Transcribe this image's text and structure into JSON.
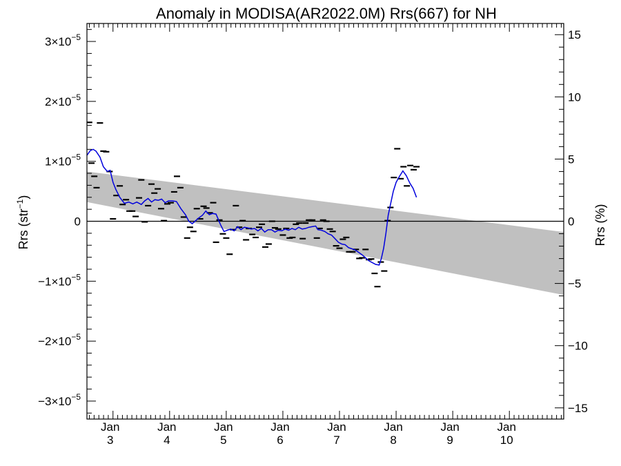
{
  "chart_data": {
    "type": "scatter",
    "title": "Anomaly in MODISA(AR2022.0M) Rrs(667) for NH",
    "ylabel_left_prefix": "Rrs (str",
    "ylabel_left_sup": "−1",
    "ylabel_left_suffix": ")",
    "ylabel_right": "Rrs (%)",
    "x_tick_labels": [
      {
        "top": "Jan",
        "bottom": "3",
        "x": 2003.0
      },
      {
        "top": "Jan",
        "bottom": "4",
        "x": 2004.0
      },
      {
        "top": "Jan",
        "bottom": "5",
        "x": 2005.0
      },
      {
        "top": "Jan",
        "bottom": "6",
        "x": 2006.0
      },
      {
        "top": "Jan",
        "bottom": "7",
        "x": 2007.0
      },
      {
        "top": "Jan",
        "bottom": "8",
        "x": 2008.0
      },
      {
        "top": "Jan",
        "bottom": "9",
        "x": 2009.0
      },
      {
        "top": "Jan",
        "bottom": "10",
        "x": 2010.0
      }
    ],
    "xlim": [
      2002.54,
      2010.96
    ],
    "ylim_left": [
      -3.3e-05,
      3.3e-05
    ],
    "ylim_right": [
      -15.9,
      15.9
    ],
    "left_ticks": [
      {
        "value": -3e-05,
        "mant": "−3×10",
        "exp": "−5"
      },
      {
        "value": -2e-05,
        "mant": "−2×10",
        "exp": "−5"
      },
      {
        "value": -1e-05,
        "mant": "−1×10",
        "exp": "−5"
      },
      {
        "value": 0,
        "mant": "0",
        "exp": ""
      },
      {
        "value": 1e-05,
        "mant": "1×10",
        "exp": "−5"
      },
      {
        "value": 2e-05,
        "mant": "2×10",
        "exp": "−5"
      },
      {
        "value": 3e-05,
        "mant": "3×10",
        "exp": "−5"
      }
    ],
    "right_ticks": [
      {
        "value": -15,
        "label": "−15"
      },
      {
        "value": -10,
        "label": "−10"
      },
      {
        "value": -5,
        "label": "−5"
      },
      {
        "value": 0,
        "label": "0"
      },
      {
        "value": 5,
        "label": "5"
      },
      {
        "value": 10,
        "label": "10"
      },
      {
        "value": 15,
        "label": "15"
      }
    ],
    "band": {
      "x": [
        2002.54,
        2010.96
      ],
      "upper": [
        8.3e-06,
        -1.8e-06
      ],
      "lower": [
        3.2e-06,
        -1.23e-05
      ],
      "color": "#c0c0c0"
    },
    "zero_line": true,
    "grid": false,
    "legend": "none",
    "colors": {
      "line": "#0000dd",
      "points": "#000000",
      "band": "#c0c0c0"
    },
    "points": [
      [
        2002.58,
        1.65e-05
      ],
      [
        2002.62,
        9.7e-06
      ],
      [
        2002.67,
        7.5e-06
      ],
      [
        2002.71,
        5.6e-06
      ],
      [
        2002.77,
        1.64e-05
      ],
      [
        2002.83,
        1.17e-05
      ],
      [
        2002.88,
        1.16e-05
      ],
      [
        2002.94,
        8.3e-06
      ],
      [
        2003.0,
        4e-07
      ],
      [
        2003.06,
        4.3e-06
      ],
      [
        2003.12,
        5.9e-06
      ],
      [
        2003.17,
        2.8e-06
      ],
      [
        2003.23,
        3.6e-06
      ],
      [
        2003.29,
        1.7e-06
      ],
      [
        2003.34,
        1.7e-06
      ],
      [
        2003.4,
        8e-07
      ],
      [
        2003.46,
        3.9e-06
      ],
      [
        2003.5,
        6.9e-06
      ],
      [
        2003.56,
        -1e-07
      ],
      [
        2003.62,
        2.6e-06
      ],
      [
        2003.68,
        6.2e-06
      ],
      [
        2003.73,
        4.7e-06
      ],
      [
        2003.79,
        5.4e-06
      ],
      [
        2003.85,
        2.1e-06
      ],
      [
        2003.9,
        1e-07
      ],
      [
        2003.96,
        2.9e-06
      ],
      [
        2004.02,
        3.1e-06
      ],
      [
        2004.08,
        4.9e-06
      ],
      [
        2004.13,
        7.5e-06
      ],
      [
        2004.19,
        5.6e-06
      ],
      [
        2004.25,
        7e-07
      ],
      [
        2004.31,
        -2.8e-06
      ],
      [
        2004.36,
        -1e-06
      ],
      [
        2004.42,
        -1.7e-06
      ],
      [
        2004.48,
        2.1e-06
      ],
      [
        2004.54,
        4e-07
      ],
      [
        2004.6,
        2.5e-06
      ],
      [
        2004.65,
        2.2e-06
      ],
      [
        2004.71,
        1.4e-06
      ],
      [
        2004.77,
        3.1e-06
      ],
      [
        2004.82,
        -3.5e-06
      ],
      [
        2004.88,
        2e-07
      ],
      [
        2004.94,
        -2.1e-06
      ],
      [
        2005.0,
        -2.8e-06
      ],
      [
        2005.06,
        -5.5e-06
      ],
      [
        2005.12,
        -1.4e-06
      ],
      [
        2005.17,
        2.6e-06
      ],
      [
        2005.23,
        -1e-06
      ],
      [
        2005.29,
        1e-07
      ],
      [
        2005.35,
        -3.1e-06
      ],
      [
        2005.4,
        -1.2e-06
      ],
      [
        2005.46,
        -2.2e-06
      ],
      [
        2005.52,
        -2.7e-06
      ],
      [
        2005.58,
        -1e-06
      ],
      [
        2005.63,
        -5e-07
      ],
      [
        2005.69,
        -4.3e-06
      ],
      [
        2005.75,
        -3.8e-06
      ],
      [
        2005.81,
        0
      ],
      [
        2005.86,
        -1.1e-06
      ],
      [
        2005.92,
        -1.3e-06
      ],
      [
        2006.0,
        -2.3e-06
      ],
      [
        2006.06,
        -1.2e-06
      ],
      [
        2006.12,
        -2.8e-06
      ],
      [
        2006.17,
        -2.7e-06
      ],
      [
        2006.23,
        -5e-07
      ],
      [
        2006.29,
        -3e-07
      ],
      [
        2006.35,
        -2.9e-06
      ],
      [
        2006.4,
        -3e-07
      ],
      [
        2006.46,
        2e-07
      ],
      [
        2006.52,
        2e-07
      ],
      [
        2006.6,
        -2.8e-06
      ],
      [
        2006.65,
        -1.2e-06
      ],
      [
        2006.71,
        2e-07
      ],
      [
        2006.77,
        0
      ],
      [
        2006.83,
        -1.3e-06
      ],
      [
        2006.88,
        -1.7e-06
      ],
      [
        2006.94,
        -4.1e-06
      ],
      [
        2007.0,
        -4.5e-06
      ],
      [
        2007.06,
        -3e-06
      ],
      [
        2007.12,
        -2.7e-06
      ],
      [
        2007.17,
        -5.1e-06
      ],
      [
        2007.23,
        -5.1e-06
      ],
      [
        2007.29,
        -4.7e-06
      ],
      [
        2007.35,
        -6.2e-06
      ],
      [
        2007.4,
        -6.1e-06
      ],
      [
        2007.46,
        -4.7e-06
      ],
      [
        2007.52,
        -6.4e-06
      ],
      [
        2007.56,
        -6.3e-06
      ],
      [
        2007.62,
        -8.7e-06
      ],
      [
        2007.67,
        -1.09e-05
      ],
      [
        2007.73,
        -6.8e-06
      ],
      [
        2007.79,
        -8.3e-06
      ],
      [
        2007.85,
        1e-07
      ],
      [
        2007.9,
        2.3e-06
      ],
      [
        2007.96,
        7.3e-06
      ],
      [
        2008.02,
        1.21e-05
      ],
      [
        2008.08,
        7.1e-06
      ],
      [
        2008.13,
        9.1e-06
      ],
      [
        2008.19,
        5.9e-06
      ],
      [
        2008.25,
        9.3e-06
      ],
      [
        2008.31,
        8.6e-06
      ],
      [
        2008.36,
        9.1e-06
      ]
    ],
    "line": [
      [
        2002.54,
        1.1e-05
      ],
      [
        2002.6,
        1.18e-05
      ],
      [
        2002.65,
        1.2e-05
      ],
      [
        2002.7,
        1.17e-05
      ],
      [
        2002.77,
        1.07e-05
      ],
      [
        2002.83,
        9.1e-06
      ],
      [
        2002.9,
        8.3e-06
      ],
      [
        2002.95,
        8.5e-06
      ],
      [
        2003.0,
        6.5e-06
      ],
      [
        2003.05,
        5.3e-06
      ],
      [
        2003.12,
        4e-06
      ],
      [
        2003.2,
        3e-06
      ],
      [
        2003.28,
        3.2e-06
      ],
      [
        2003.35,
        2.9e-06
      ],
      [
        2003.42,
        3.2e-06
      ],
      [
        2003.5,
        2.8e-06
      ],
      [
        2003.56,
        3.4e-06
      ],
      [
        2003.62,
        3.8e-06
      ],
      [
        2003.68,
        3.2e-06
      ],
      [
        2003.74,
        3.6e-06
      ],
      [
        2003.8,
        3.5e-06
      ],
      [
        2003.86,
        3.7e-06
      ],
      [
        2003.92,
        3.1e-06
      ],
      [
        2003.98,
        3.4e-06
      ],
      [
        2004.05,
        3.4e-06
      ],
      [
        2004.12,
        3.3e-06
      ],
      [
        2004.2,
        2.1e-06
      ],
      [
        2004.28,
        1.1e-06
      ],
      [
        2004.34,
        0
      ],
      [
        2004.4,
        -4e-07
      ],
      [
        2004.46,
        1e-07
      ],
      [
        2004.52,
        6e-07
      ],
      [
        2004.58,
        1e-06
      ],
      [
        2004.64,
        1.7e-06
      ],
      [
        2004.7,
        1.1e-06
      ],
      [
        2004.76,
        1.3e-06
      ],
      [
        2004.82,
        1.2e-06
      ],
      [
        2004.9,
        -6e-07
      ],
      [
        2004.96,
        -1.7e-06
      ],
      [
        2005.02,
        -1.5e-06
      ],
      [
        2005.08,
        -1.3e-06
      ],
      [
        2005.14,
        -1.6e-06
      ],
      [
        2005.2,
        -9e-07
      ],
      [
        2005.26,
        -1.4e-06
      ],
      [
        2005.32,
        -1e-06
      ],
      [
        2005.38,
        -1.1e-06
      ],
      [
        2005.44,
        -1.3e-06
      ],
      [
        2005.5,
        -1.2e-06
      ],
      [
        2005.56,
        -1.6e-06
      ],
      [
        2005.62,
        -1.2e-06
      ],
      [
        2005.68,
        -1.8e-06
      ],
      [
        2005.74,
        -1.4e-06
      ],
      [
        2005.8,
        -1.4e-06
      ],
      [
        2005.86,
        -1.8e-06
      ],
      [
        2005.92,
        -1.5e-06
      ],
      [
        2005.98,
        -1.6e-06
      ],
      [
        2006.04,
        -1.3e-06
      ],
      [
        2006.1,
        -1.5e-06
      ],
      [
        2006.16,
        -1.2e-06
      ],
      [
        2006.22,
        -1.4e-06
      ],
      [
        2006.28,
        -1e-06
      ],
      [
        2006.34,
        -1.3e-06
      ],
      [
        2006.4,
        -1.2e-06
      ],
      [
        2006.46,
        -1e-06
      ],
      [
        2006.52,
        -9e-07
      ],
      [
        2006.58,
        -8e-07
      ],
      [
        2006.62,
        -1.4e-06
      ],
      [
        2006.68,
        -1.5e-06
      ],
      [
        2006.74,
        -1.7e-06
      ],
      [
        2006.8,
        -2.1e-06
      ],
      [
        2006.86,
        -2.3e-06
      ],
      [
        2006.92,
        -2.9e-06
      ],
      [
        2006.98,
        -3.5e-06
      ],
      [
        2007.04,
        -3.8e-06
      ],
      [
        2007.1,
        -3.9e-06
      ],
      [
        2007.16,
        -4.4e-06
      ],
      [
        2007.22,
        -4.6e-06
      ],
      [
        2007.28,
        -4.8e-06
      ],
      [
        2007.34,
        -5.2e-06
      ],
      [
        2007.4,
        -5.6e-06
      ],
      [
        2007.46,
        -6.1e-06
      ],
      [
        2007.52,
        -6.6e-06
      ],
      [
        2007.58,
        -6.9e-06
      ],
      [
        2007.64,
        -7.2e-06
      ],
      [
        2007.7,
        -7.3e-06
      ],
      [
        2007.74,
        -6.2e-06
      ],
      [
        2007.78,
        -4.5e-06
      ],
      [
        2007.82,
        -2e-06
      ],
      [
        2007.86,
        1e-06
      ],
      [
        2007.9,
        2.8e-06
      ],
      [
        2007.95,
        5e-06
      ],
      [
        2008.0,
        6.5e-06
      ],
      [
        2008.06,
        7.5e-06
      ],
      [
        2008.12,
        8.4e-06
      ],
      [
        2008.18,
        7.6e-06
      ],
      [
        2008.24,
        6.4e-06
      ],
      [
        2008.3,
        5.5e-06
      ],
      [
        2008.36,
        4e-06
      ]
    ]
  }
}
